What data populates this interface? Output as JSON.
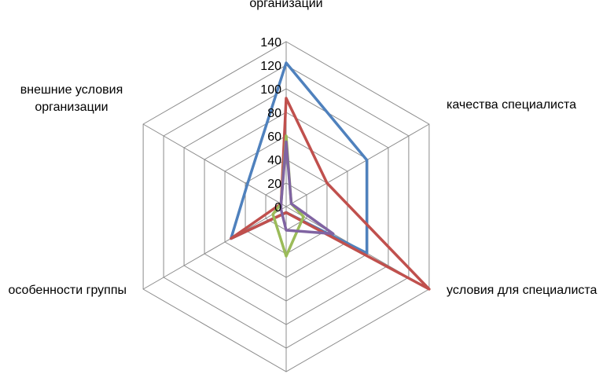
{
  "chart_data": {
    "type": "radar",
    "axes": [
      {
        "label": [
          "организации"
        ]
      },
      {
        "label": [
          "качества специалиста"
        ]
      },
      {
        "label": [
          "условия для специалиста"
        ]
      },
      {
        "label": [
          ""
        ]
      },
      {
        "label": [
          "особенности группы"
        ]
      },
      {
        "label": [
          "внешние условия",
          "организации"
        ]
      }
    ],
    "r_ticks": [
      "0",
      "20",
      "40",
      "60",
      "80",
      "100",
      "120",
      "140"
    ],
    "r_range": [
      0,
      140
    ],
    "grid": true,
    "legend": "none",
    "series": [
      {
        "color": "#4f81bd",
        "values": [
          122,
          79,
          79,
          5,
          54,
          38
        ]
      },
      {
        "color": "#c0504d",
        "values": [
          92,
          40,
          140,
          5,
          54,
          5
        ]
      },
      {
        "color": "#9bbb59",
        "values": [
          60,
          5,
          17,
          42,
          13,
          5
        ]
      },
      {
        "color": "#8064a2",
        "values": [
          55,
          5,
          46,
          20,
          5,
          5
        ]
      }
    ]
  }
}
